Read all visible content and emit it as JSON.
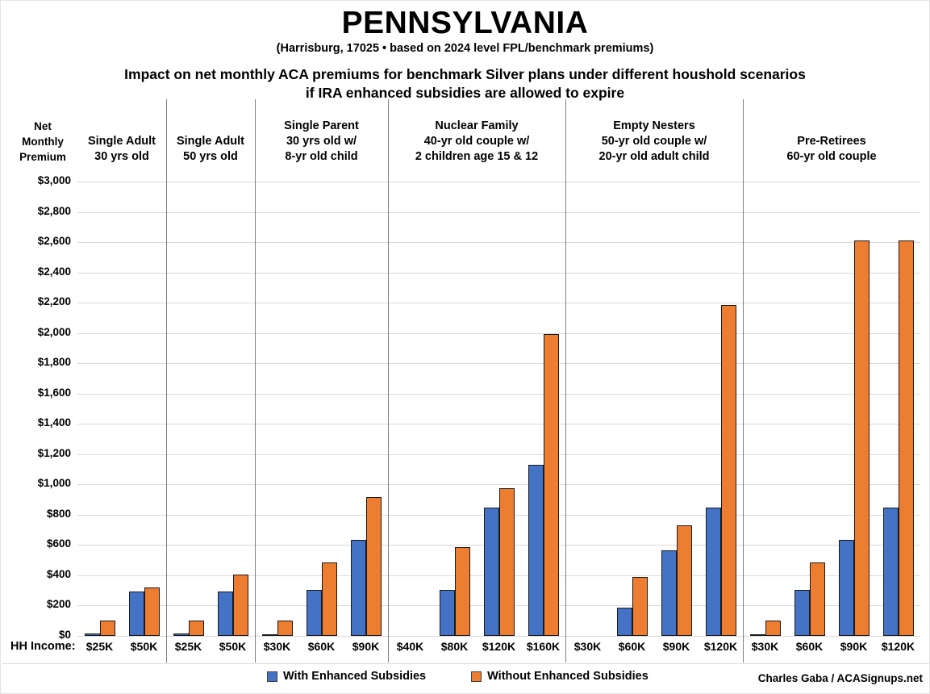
{
  "title": "PENNSYLVANIA",
  "subtitle": "(Harrisburg, 17025 • based on 2024 level FPL/benchmark premiums)",
  "heading": {
    "line1": "Impact on net monthly ACA premiums for benchmark Silver plans under different houshold scenarios",
    "line2": "if IRA enhanced subsidies are allowed to expire"
  },
  "x_axis_prefix": "HH Income:",
  "credit": "Charles Gaba / ACASignups.net",
  "chart_data": {
    "type": "bar",
    "title": "Impact on net monthly ACA premiums for benchmark Silver plans under different houshold scenarios if IRA enhanced subsidies are allowed to expire",
    "state": "PENNSYLVANIA",
    "location_note": "(Harrisburg, 17025 • based on 2024 level FPL/benchmark premiums)",
    "y_axis": {
      "label": "Net Monthly Premium",
      "label_lines": [
        "Net",
        "Monthly",
        "Premium"
      ],
      "min": 0,
      "max": 3000,
      "step": 200,
      "tick_prefix": "$"
    },
    "x_axis": {
      "label": "HH Income:"
    },
    "grid": true,
    "legend_position": "bottom",
    "series": [
      {
        "name": "With Enhanced Subsidies",
        "color": "#4472C4"
      },
      {
        "name": "Without Enhanced Subsidies",
        "color": "#ED7D31"
      }
    ],
    "groups": [
      {
        "header_lines": [
          "Single Adult",
          "30 yrs old"
        ],
        "categories": [
          "$25K",
          "$50K"
        ],
        "values": {
          "with_enhanced": [
            15,
            295
          ],
          "without_enhanced": [
            100,
            320
          ]
        }
      },
      {
        "header_lines": [
          "Single Adult",
          "50 yrs old"
        ],
        "categories": [
          "$25K",
          "$50K"
        ],
        "values": {
          "with_enhanced": [
            15,
            295
          ],
          "without_enhanced": [
            100,
            405
          ]
        }
      },
      {
        "header_lines": [
          "Single Parent",
          "30 yrs old w/",
          "8-yr old child"
        ],
        "categories": [
          "$30K",
          "$60K",
          "$90K"
        ],
        "values": {
          "with_enhanced": [
            5,
            305,
            635
          ],
          "without_enhanced": [
            100,
            485,
            915
          ]
        }
      },
      {
        "header_lines": [
          "Nuclear Family",
          "40-yr old couple w/",
          "2 children age 15 & 12"
        ],
        "categories": [
          "$40K",
          "$80K",
          "$120K",
          "$160K"
        ],
        "values": {
          "with_enhanced": [
            0,
            305,
            845,
            1130
          ],
          "without_enhanced": [
            0,
            585,
            975,
            1995
          ]
        }
      },
      {
        "header_lines": [
          "Empty Nesters",
          "50-yr old couple w/",
          "20-yr old adult child"
        ],
        "categories": [
          "$30K",
          "$60K",
          "$90K",
          "$120K"
        ],
        "values": {
          "with_enhanced": [
            0,
            185,
            565,
            845
          ],
          "without_enhanced": [
            0,
            390,
            730,
            2185
          ]
        }
      },
      {
        "header_lines": [
          "Pre-Retirees",
          "60-yr old couple"
        ],
        "categories": [
          "$30K",
          "$60K",
          "$90K",
          "$120K"
        ],
        "values": {
          "with_enhanced": [
            5,
            305,
            635,
            845
          ],
          "without_enhanced": [
            100,
            485,
            2610,
            2610
          ]
        }
      }
    ],
    "colors": {
      "grid": "#d9d9d9",
      "separator": "#7f7f7f",
      "bar_border": "#1a1a1a",
      "text": "#000000"
    }
  }
}
